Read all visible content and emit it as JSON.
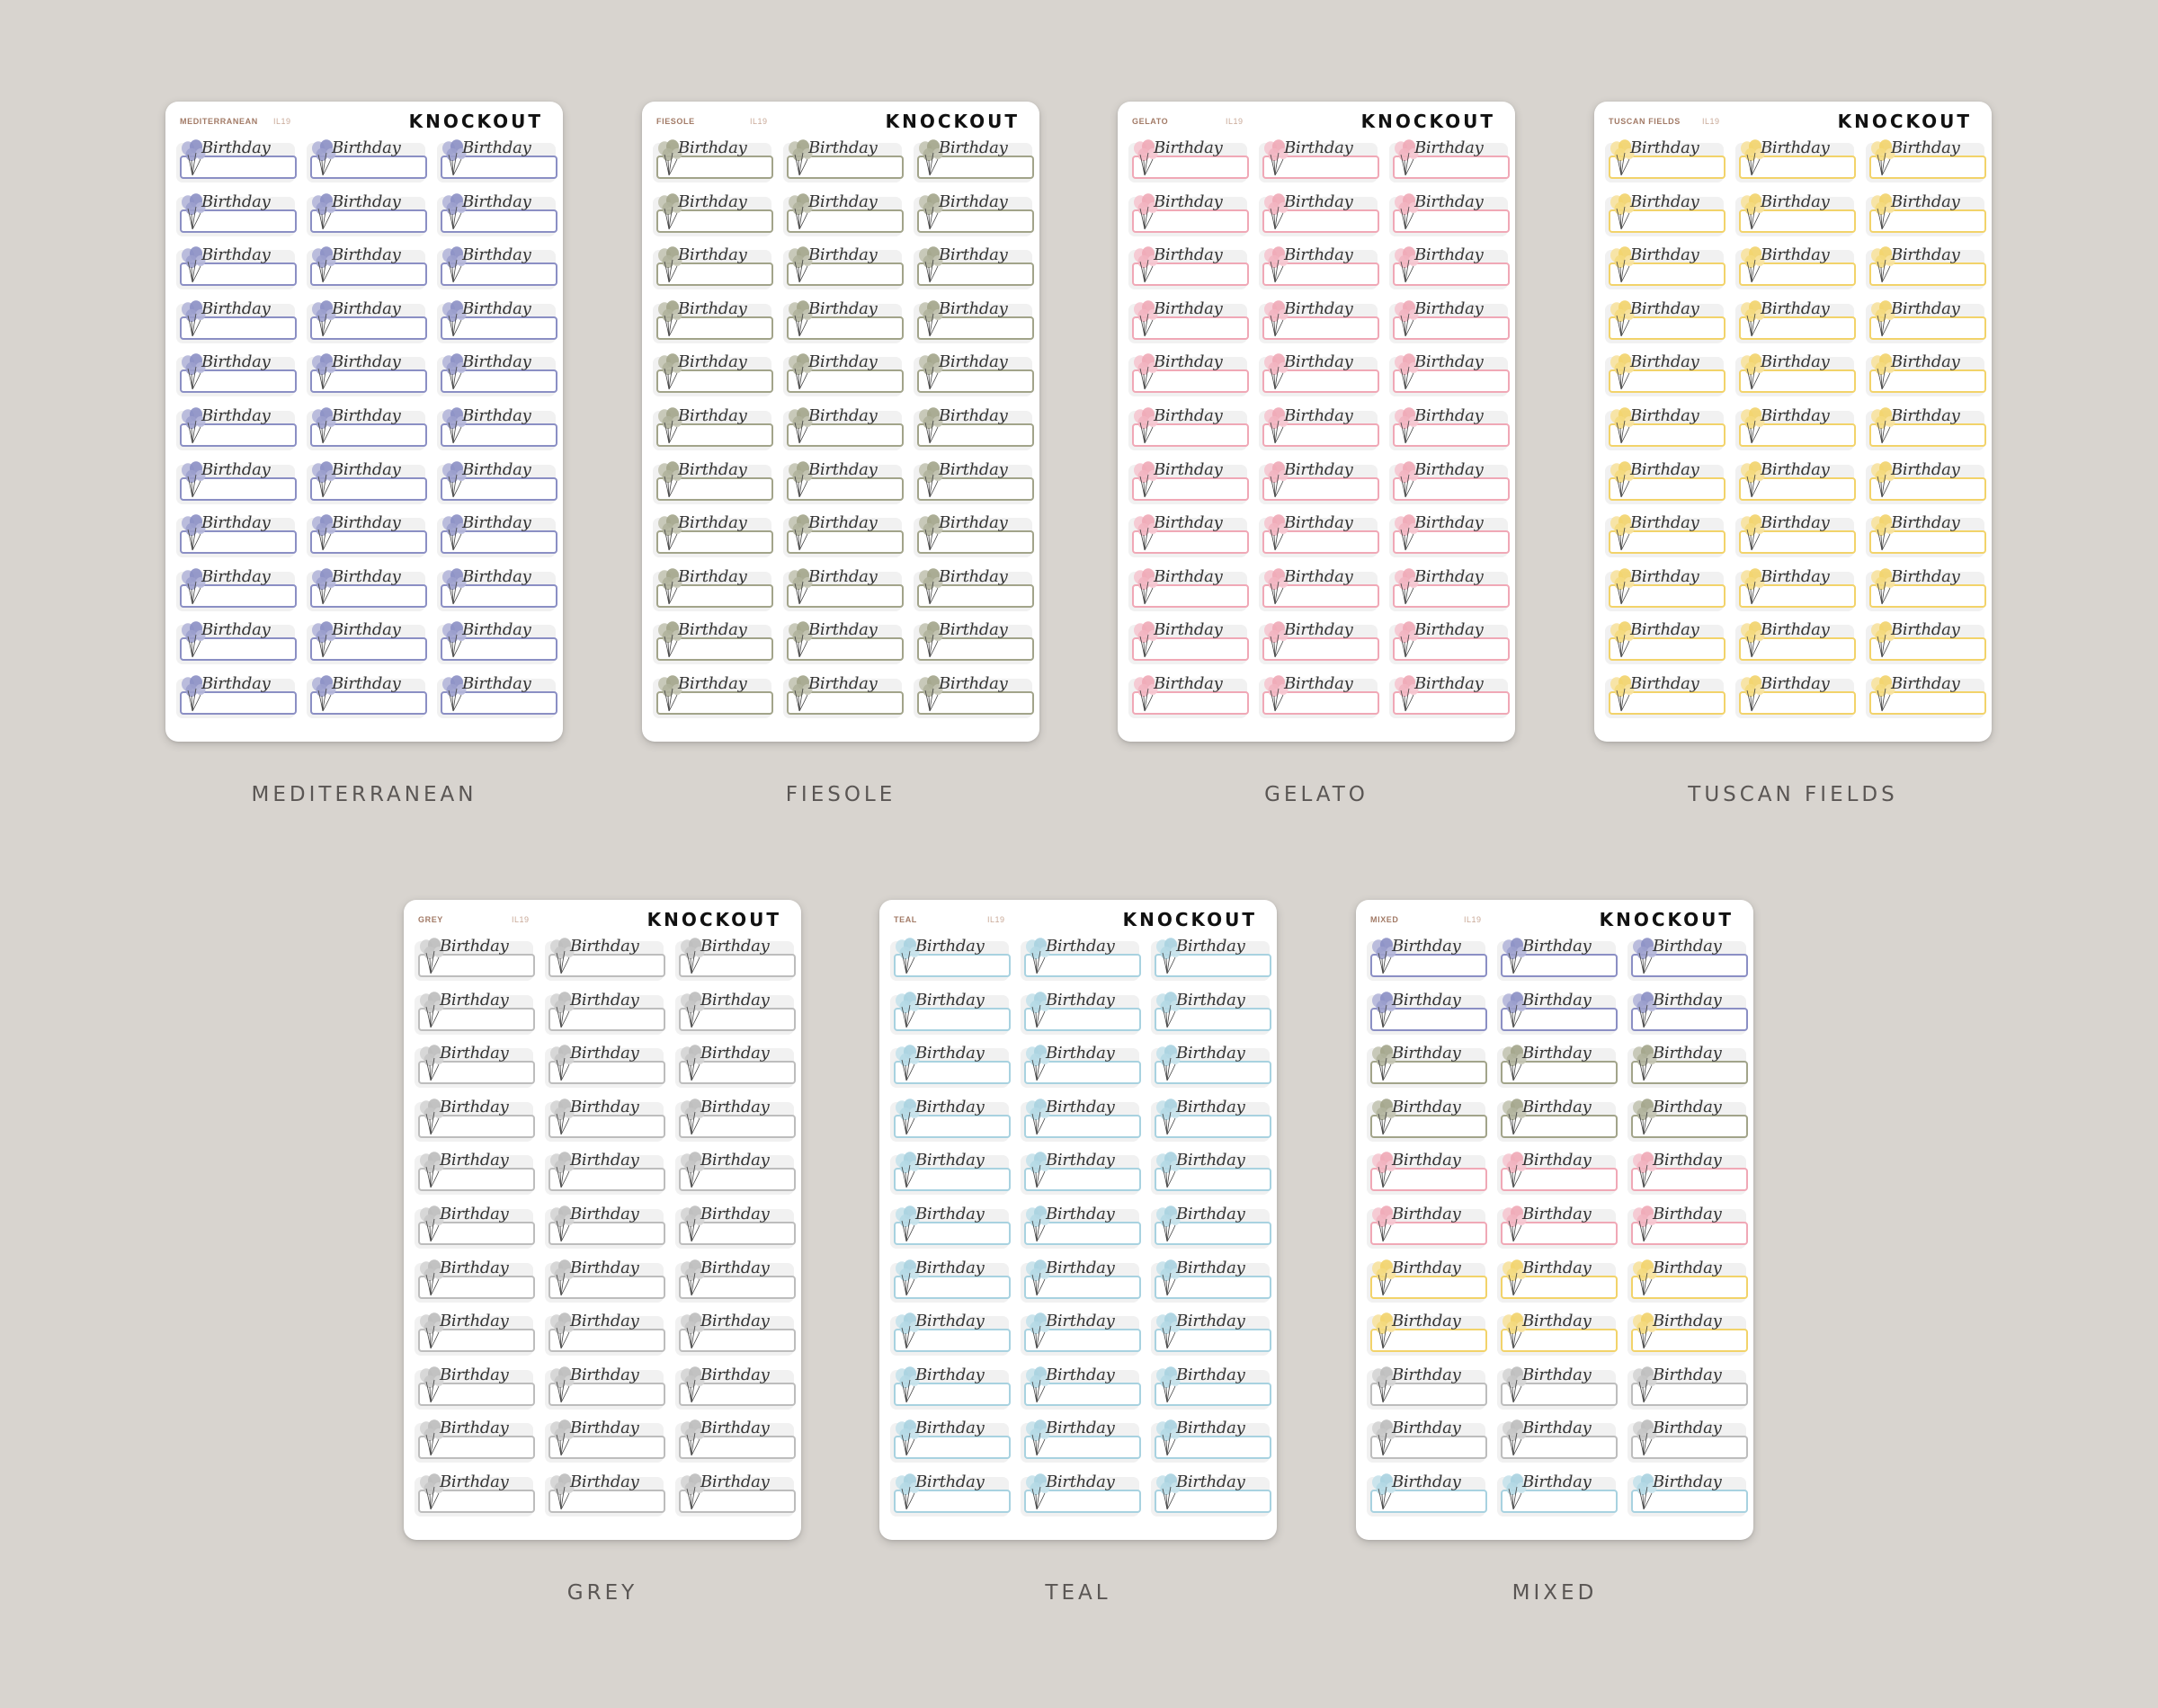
{
  "brand": "KNOCKOUT",
  "sticker_text": "Birthday",
  "sheet_code": "IL19",
  "sheets": [
    {
      "id": "mediterranean",
      "name": "MEDITERRANEAN",
      "caption": "MEDITERRANEAN",
      "colors": [
        "#8b8fc4"
      ]
    },
    {
      "id": "fiesole",
      "name": "FIESOLE",
      "caption": "FIESOLE",
      "colors": [
        "#a2a48a"
      ]
    },
    {
      "id": "gelato",
      "name": "GELATO",
      "caption": "GELATO",
      "colors": [
        "#f0a8b6"
      ]
    },
    {
      "id": "tuscan-fields",
      "name": "TUSCAN FIELDS",
      "caption": "TUSCAN FIELDS",
      "colors": [
        "#f2d36a"
      ]
    },
    {
      "id": "grey",
      "name": "GREY",
      "caption": "GREY",
      "colors": [
        "#bdbdbd"
      ]
    },
    {
      "id": "teal",
      "name": "TEAL",
      "caption": "TEAL",
      "colors": [
        "#a8d2e0"
      ]
    },
    {
      "id": "mixed",
      "name": "MIXED",
      "caption": "MIXED",
      "colors": [
        "#8b8fc4",
        "#8b8fc4",
        "#a2a48a",
        "#a2a48a",
        "#f0a8b6",
        "#f0a8b6",
        "#f2d36a",
        "#f2d36a",
        "#bdbdbd",
        "#bdbdbd",
        "#a8d2e0"
      ]
    }
  ]
}
